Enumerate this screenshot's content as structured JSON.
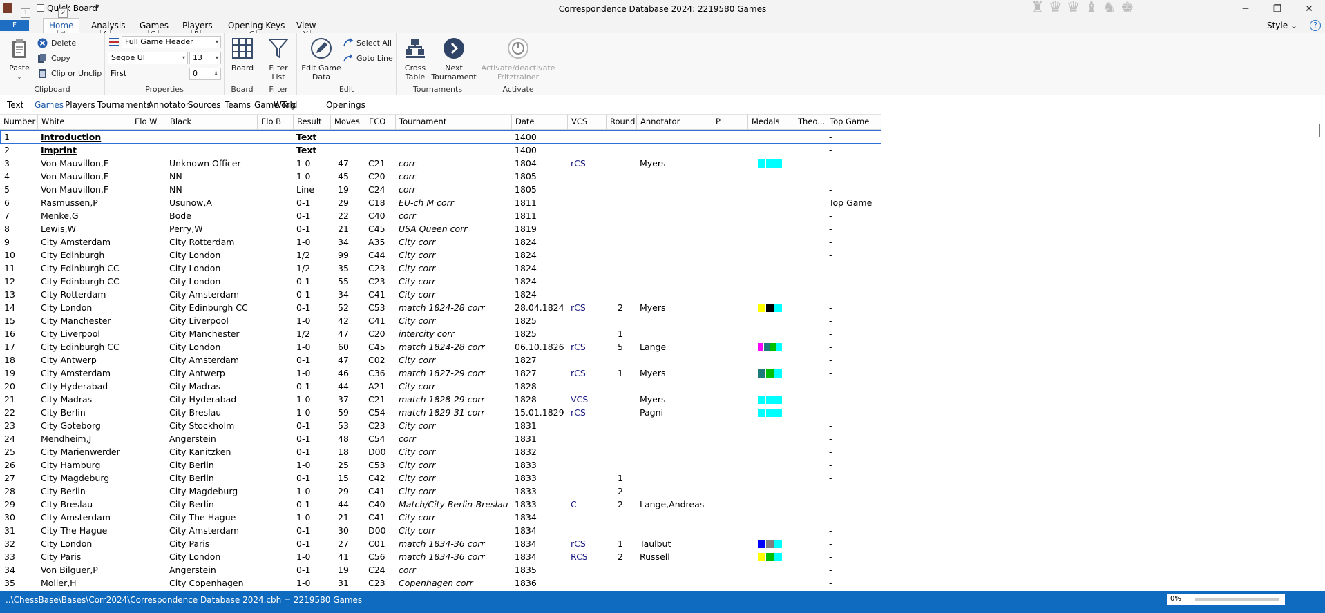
{
  "titlebar": {
    "title": "Correspondence Database 2024:  2219580 Games",
    "quick_board": "Quick Board",
    "keytip_1": "1",
    "keytip_2": "2",
    "min_glyph": "─",
    "max_glyph": "❐",
    "close_glyph": "✕"
  },
  "chess_icons": [
    "♜",
    "♛",
    "♛",
    "♝",
    "♞",
    "♚"
  ],
  "ribbon_tabs": {
    "file_tip": "F",
    "tabs": [
      {
        "label": "Home",
        "tip": "H",
        "active": true
      },
      {
        "label": "Analysis",
        "tip": "A"
      },
      {
        "label": "Games",
        "tip": "G"
      },
      {
        "label": "Players",
        "tip": "P"
      },
      {
        "label": "Opening Keys",
        "tip": "C"
      },
      {
        "label": "View",
        "tip": "V"
      }
    ],
    "style_label": "Style",
    "help": "?"
  },
  "ribbon": {
    "clipboard": {
      "label": "Clipboard",
      "paste": "Paste",
      "delete": "Delete",
      "copy": "Copy",
      "clip": "Clip or Unclip"
    },
    "properties": {
      "label": "Properties",
      "header_combo": "Full Game Header",
      "font": "Segoe UI",
      "size": "13",
      "first_label": "First",
      "first_value": "0"
    },
    "board": {
      "label": "Board",
      "button": "Board"
    },
    "filter": {
      "label": "Filter",
      "button_l1": "Filter",
      "button_l2": "List"
    },
    "edit": {
      "label": "Edit",
      "edit_l1": "Edit Game",
      "edit_l2": "Data",
      "select_all": "Select All",
      "goto_line": "Goto Line"
    },
    "tournaments": {
      "label": "Tournaments",
      "cross_l1": "Cross",
      "cross_l2": "Table",
      "next_l1": "Next",
      "next_l2": "Tournament"
    },
    "activate": {
      "label": "Activate",
      "btn_l1": "Activate/deactivate",
      "btn_l2": "Fritztrainer"
    }
  },
  "subtabs": [
    "Text",
    "Games",
    "Players",
    "Tournaments",
    "Annotator",
    "Sources",
    "Teams",
    "Game Tag",
    "World",
    "Openings"
  ],
  "active_subtab": 1,
  "columns": [
    "Number",
    "White",
    "Elo W",
    "Black",
    "Elo B",
    "Result",
    "Moves",
    "ECO",
    "Tournament",
    "Date",
    "VCS",
    "Round",
    "Annotator",
    "P",
    "Medals",
    "Theo...",
    "Top Game"
  ],
  "rows": [
    {
      "n": "1",
      "white": "Introduction",
      "black": "",
      "result": "Text",
      "moves": "",
      "eco": "",
      "tournament": "",
      "date": "1400",
      "vcs": "",
      "round": "",
      "annotator": "",
      "medals": [],
      "top": "-"
    },
    {
      "n": "2",
      "white": "Imprint",
      "black": "",
      "result": "Text",
      "moves": "",
      "eco": "",
      "tournament": "",
      "date": "1400",
      "vcs": "",
      "round": "",
      "annotator": "",
      "medals": [],
      "top": "-"
    },
    {
      "n": "3",
      "white": "Von Mauvillon,F",
      "black": "Unknown Officer",
      "result": "1-0",
      "moves": "47",
      "eco": "C21",
      "tournament": "corr",
      "date": "1804",
      "vcs": "rCS",
      "round": "",
      "annotator": "Myers",
      "medals": [
        "#00ffff",
        "#00ffff",
        "#00ffff"
      ],
      "top": "-"
    },
    {
      "n": "4",
      "white": "Von Mauvillon,F",
      "black": "NN",
      "result": "1-0",
      "moves": "45",
      "eco": "C20",
      "tournament": "corr",
      "date": "1805",
      "vcs": "",
      "round": "",
      "annotator": "",
      "medals": [],
      "top": "-"
    },
    {
      "n": "5",
      "white": "Von Mauvillon,F",
      "black": "NN",
      "result": "Line",
      "moves": "19",
      "eco": "C24",
      "tournament": "corr",
      "date": "1805",
      "vcs": "",
      "round": "",
      "annotator": "",
      "medals": [],
      "top": "-"
    },
    {
      "n": "6",
      "white": "Rasmussen,P",
      "black": "Usunow,A",
      "result": "0-1",
      "moves": "29",
      "eco": "C18",
      "tournament": "EU-ch M corr",
      "date": "1811",
      "vcs": "",
      "round": "",
      "annotator": "",
      "medals": [],
      "top": "Top Game"
    },
    {
      "n": "7",
      "white": "Menke,G",
      "black": "Bode",
      "result": "0-1",
      "moves": "22",
      "eco": "C40",
      "tournament": "corr",
      "date": "1811",
      "vcs": "",
      "round": "",
      "annotator": "",
      "medals": [],
      "top": "-"
    },
    {
      "n": "8",
      "white": "Lewis,W",
      "black": "Perry,W",
      "result": "0-1",
      "moves": "21",
      "eco": "C45",
      "tournament": "USA Queen corr",
      "date": "1819",
      "vcs": "",
      "round": "",
      "annotator": "",
      "medals": [],
      "top": "-"
    },
    {
      "n": "9",
      "white": "City Amsterdam",
      "black": "City Rotterdam",
      "result": "1-0",
      "moves": "34",
      "eco": "A35",
      "tournament": "City corr",
      "date": "1824",
      "vcs": "",
      "round": "",
      "annotator": "",
      "medals": [],
      "top": "-"
    },
    {
      "n": "10",
      "white": "City Edinburgh",
      "black": "City London",
      "result": "1/2",
      "moves": "99",
      "eco": "C44",
      "tournament": "City corr",
      "date": "1824",
      "vcs": "",
      "round": "",
      "annotator": "",
      "medals": [],
      "top": "-"
    },
    {
      "n": "11",
      "white": "City Edinburgh CC",
      "black": "City London",
      "result": "1/2",
      "moves": "35",
      "eco": "C23",
      "tournament": "City corr",
      "date": "1824",
      "vcs": "",
      "round": "",
      "annotator": "",
      "medals": [],
      "top": "-"
    },
    {
      "n": "12",
      "white": "City Edinburgh CC",
      "black": "City London",
      "result": "0-1",
      "moves": "55",
      "eco": "C23",
      "tournament": "City corr",
      "date": "1824",
      "vcs": "",
      "round": "",
      "annotator": "",
      "medals": [],
      "top": "-"
    },
    {
      "n": "13",
      "white": "City Rotterdam",
      "black": "City Amsterdam",
      "result": "0-1",
      "moves": "34",
      "eco": "C41",
      "tournament": "City corr",
      "date": "1824",
      "vcs": "",
      "round": "",
      "annotator": "",
      "medals": [],
      "top": "-"
    },
    {
      "n": "14",
      "white": "City London",
      "black": "City Edinburgh CC",
      "result": "0-1",
      "moves": "52",
      "eco": "C53",
      "tournament": "match 1824-28 corr",
      "date": "28.04.1824",
      "vcs": "rCS",
      "round": "2",
      "annotator": "Myers",
      "medals": [
        "#ffff00",
        "#000000",
        "#00ffff"
      ],
      "top": "-"
    },
    {
      "n": "15",
      "white": "City Manchester",
      "black": "City Liverpool",
      "result": "1-0",
      "moves": "42",
      "eco": "C41",
      "tournament": "City corr",
      "date": "1825",
      "vcs": "",
      "round": "",
      "annotator": "",
      "medals": [],
      "top": "-"
    },
    {
      "n": "16",
      "white": "City Liverpool",
      "black": "City Manchester",
      "result": "1/2",
      "moves": "47",
      "eco": "C20",
      "tournament": "intercity corr",
      "date": "1825",
      "vcs": "",
      "round": "1",
      "annotator": "",
      "medals": [],
      "top": "-"
    },
    {
      "n": "17",
      "white": "City Edinburgh CC",
      "black": "City London",
      "result": "1-0",
      "moves": "60",
      "eco": "C45",
      "tournament": "match 1824-28 corr",
      "date": "06.10.1826",
      "vcs": "rCS",
      "round": "5",
      "annotator": "Lange",
      "medals": [
        "#ff00ff",
        "#1f7a7a",
        "#00c000",
        "#00ffff"
      ],
      "top": "-"
    },
    {
      "n": "18",
      "white": "City Antwerp",
      "black": "City Amsterdam",
      "result": "0-1",
      "moves": "47",
      "eco": "C02",
      "tournament": "City corr",
      "date": "1827",
      "vcs": "",
      "round": "",
      "annotator": "",
      "medals": [],
      "top": "-"
    },
    {
      "n": "19",
      "white": "City Amsterdam",
      "black": "City Antwerp",
      "result": "1-0",
      "moves": "46",
      "eco": "C36",
      "tournament": "match 1827-29 corr",
      "date": "1827",
      "vcs": "rCS",
      "round": "1",
      "annotator": "Myers",
      "medals": [
        "#1f7a7a",
        "#00c000",
        "#00ffff"
      ],
      "top": "-"
    },
    {
      "n": "20",
      "white": "City Hyderabad",
      "black": "City Madras",
      "result": "0-1",
      "moves": "44",
      "eco": "A21",
      "tournament": "City corr",
      "date": "1828",
      "vcs": "",
      "round": "",
      "annotator": "",
      "medals": [],
      "top": "-"
    },
    {
      "n": "21",
      "white": "City Madras",
      "black": "City Hyderabad",
      "result": "1-0",
      "moves": "37",
      "eco": "C21",
      "tournament": "match 1828-29 corr",
      "date": "1828",
      "vcs": "VCS",
      "round": "",
      "annotator": "Myers",
      "medals": [
        "#00ffff",
        "#00ffff",
        "#00ffff"
      ],
      "top": "-"
    },
    {
      "n": "22",
      "white": "City Berlin",
      "black": "City Breslau",
      "result": "1-0",
      "moves": "59",
      "eco": "C54",
      "tournament": "match 1829-31 corr",
      "date": "15.01.1829",
      "vcs": "rCS",
      "round": "",
      "annotator": "Pagni",
      "medals": [
        "#00ffff",
        "#00ffff",
        "#00ffff"
      ],
      "top": "-"
    },
    {
      "n": "23",
      "white": "City Goteborg",
      "black": "City Stockholm",
      "result": "0-1",
      "moves": "53",
      "eco": "C23",
      "tournament": "City corr",
      "date": "1831",
      "vcs": "",
      "round": "",
      "annotator": "",
      "medals": [],
      "top": "-"
    },
    {
      "n": "24",
      "white": "Mendheim,J",
      "black": "Angerstein",
      "result": "0-1",
      "moves": "48",
      "eco": "C54",
      "tournament": "corr",
      "date": "1831",
      "vcs": "",
      "round": "",
      "annotator": "",
      "medals": [],
      "top": "-"
    },
    {
      "n": "25",
      "white": "City Marienwerder",
      "black": "City Kanitzken",
      "result": "0-1",
      "moves": "18",
      "eco": "D00",
      "tournament": "City corr",
      "date": "1832",
      "vcs": "",
      "round": "",
      "annotator": "",
      "medals": [],
      "top": "-"
    },
    {
      "n": "26",
      "white": "City Hamburg",
      "black": "City Berlin",
      "result": "1-0",
      "moves": "25",
      "eco": "C53",
      "tournament": "City corr",
      "date": "1833",
      "vcs": "",
      "round": "",
      "annotator": "",
      "medals": [],
      "top": "-"
    },
    {
      "n": "27",
      "white": "City Magdeburg",
      "black": "City Berlin",
      "result": "0-1",
      "moves": "15",
      "eco": "C42",
      "tournament": "City corr",
      "date": "1833",
      "vcs": "",
      "round": "1",
      "annotator": "",
      "medals": [],
      "top": "-"
    },
    {
      "n": "28",
      "white": "City Berlin",
      "black": "City Magdeburg",
      "result": "1-0",
      "moves": "29",
      "eco": "C41",
      "tournament": "City corr",
      "date": "1833",
      "vcs": "",
      "round": "2",
      "annotator": "",
      "medals": [],
      "top": "-"
    },
    {
      "n": "29",
      "white": "City Breslau",
      "black": "City Berlin",
      "result": "0-1",
      "moves": "44",
      "eco": "C40",
      "tournament": "Match/City Berlin-Breslau",
      "date": "1833",
      "vcs": "C",
      "round": "2",
      "annotator": "Lange,Andreas",
      "medals": [],
      "top": "-"
    },
    {
      "n": "30",
      "white": "City Amsterdam",
      "black": "City The Hague",
      "result": "1-0",
      "moves": "21",
      "eco": "C41",
      "tournament": "City corr",
      "date": "1834",
      "vcs": "",
      "round": "",
      "annotator": "",
      "medals": [],
      "top": "-"
    },
    {
      "n": "31",
      "white": "City The Hague",
      "black": "City Amsterdam",
      "result": "0-1",
      "moves": "30",
      "eco": "D00",
      "tournament": "City corr",
      "date": "1834",
      "vcs": "",
      "round": "",
      "annotator": "",
      "medals": [],
      "top": "-"
    },
    {
      "n": "32",
      "white": "City London",
      "black": "City Paris",
      "result": "0-1",
      "moves": "27",
      "eco": "C01",
      "tournament": "match 1834-36 corr",
      "date": "1834",
      "vcs": "rCS",
      "round": "1",
      "annotator": "Taulbut",
      "medals": [
        "#0000ff",
        "#808080",
        "#00ffff"
      ],
      "top": "-"
    },
    {
      "n": "33",
      "white": "City Paris",
      "black": "City London",
      "result": "1-0",
      "moves": "41",
      "eco": "C56",
      "tournament": "match 1834-36 corr",
      "date": "1834",
      "vcs": "RCS",
      "round": "2",
      "annotator": "Russell",
      "medals": [
        "#ffff00",
        "#00c000",
        "#00ffff"
      ],
      "top": "-"
    },
    {
      "n": "34",
      "white": "Von Bilguer,P",
      "black": "Angerstein",
      "result": "0-1",
      "moves": "19",
      "eco": "C24",
      "tournament": "corr",
      "date": "1835",
      "vcs": "",
      "round": "",
      "annotator": "",
      "medals": [],
      "top": "-"
    },
    {
      "n": "35",
      "white": "Moller,H",
      "black": "City Copenhagen",
      "result": "1-0",
      "moves": "31",
      "eco": "C23",
      "tournament": "Copenhagen corr",
      "date": "1836",
      "vcs": "",
      "round": "",
      "annotator": "",
      "medals": [],
      "top": "-"
    }
  ],
  "status": {
    "path": "..\\ChessBase\\Bases\\Corr2024\\Correspondence Database 2024.cbh = 2219580 Games",
    "progress": "0%"
  }
}
